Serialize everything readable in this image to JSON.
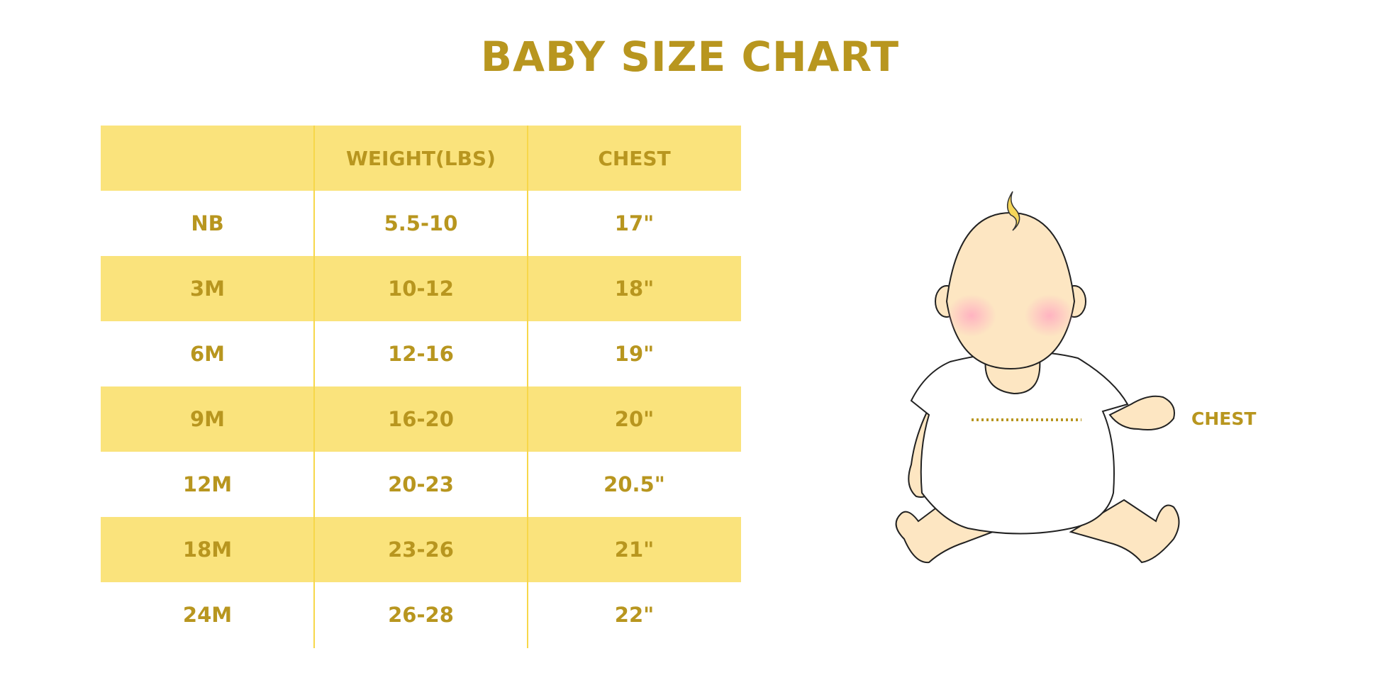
{
  "title": "BABY SIZE CHART",
  "colors": {
    "text": "#b8961f",
    "band": "#fae37c",
    "divider": "#f7d74a"
  },
  "table": {
    "headers": [
      "",
      "WEIGHT(LBS)",
      "CHEST"
    ],
    "rows": [
      [
        "NB",
        "5.5-10",
        "17\""
      ],
      [
        "3M",
        "10-12",
        "18\""
      ],
      [
        "6M",
        "12-16",
        "19\""
      ],
      [
        "9M",
        "16-20",
        "20\""
      ],
      [
        "12M",
        "20-23",
        "20.5\""
      ],
      [
        "18M",
        "23-26",
        "21\""
      ],
      [
        "24M",
        "26-28",
        "22\""
      ]
    ]
  },
  "illustration": {
    "label": "CHEST",
    "icon": "baby-illustration"
  }
}
